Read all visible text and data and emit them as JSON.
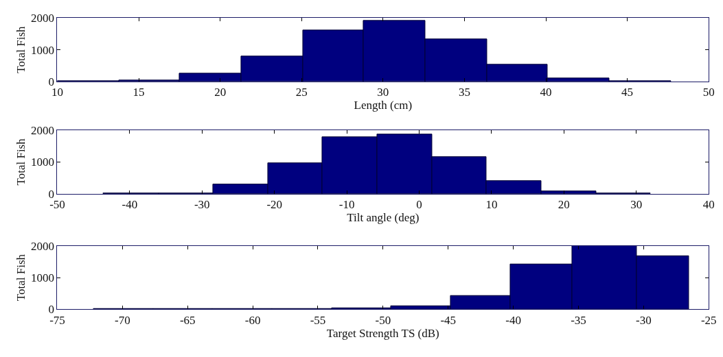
{
  "chart_data": [
    {
      "type": "histogram",
      "xlabel": "Length (cm)",
      "ylabel": "Total Fish",
      "color": "#00007f",
      "bins": [
        10,
        13.8,
        17.5,
        21.3,
        25.1,
        28.8,
        32.6,
        36.4,
        40.1,
        43.9,
        47.7
      ],
      "values": [
        10,
        30,
        250,
        780,
        1620,
        1920,
        1330,
        520,
        100,
        20
      ],
      "xlim": [
        10,
        50
      ],
      "xticks": [
        10,
        15,
        20,
        25,
        30,
        35,
        40,
        45,
        50
      ],
      "ylim": [
        0,
        2000
      ],
      "yticks": [
        0,
        1000,
        2000
      ]
    },
    {
      "type": "histogram",
      "xlabel": "Tilt angle (deg)",
      "ylabel": "Total Fish",
      "color": "#00007f",
      "bins": [
        -43.6,
        -36,
        -28.5,
        -20.9,
        -13.4,
        -5.8,
        1.8,
        9.3,
        16.9,
        24.5,
        32
      ],
      "values": [
        10,
        10,
        300,
        960,
        1780,
        1880,
        1150,
        400,
        80,
        20
      ],
      "xlim": [
        -50,
        40
      ],
      "xticks": [
        -50,
        -40,
        -30,
        -20,
        -10,
        0,
        10,
        20,
        30,
        40
      ],
      "ylim": [
        0,
        2000
      ],
      "yticks": [
        0,
        1000,
        2000
      ]
    },
    {
      "type": "histogram",
      "xlabel": "Target Strength TS (dB)",
      "ylabel": "Total Fish",
      "color": "#00007f",
      "bins": [
        -72.2,
        -67.6,
        -63.1,
        -58.5,
        -53.9,
        -49.4,
        -44.8,
        -40.2,
        -35.5,
        -30.5,
        -26.5
      ],
      "values": [
        10,
        10,
        10,
        10,
        30,
        100,
        430,
        1420,
        2000,
        1680
      ],
      "xlim": [
        -75,
        -25
      ],
      "xticks": [
        -75,
        -70,
        -65,
        -60,
        -55,
        -50,
        -45,
        -40,
        -35,
        -30,
        -25
      ],
      "ylim": [
        0,
        2000
      ],
      "yticks": [
        0,
        1000,
        2000
      ]
    }
  ]
}
